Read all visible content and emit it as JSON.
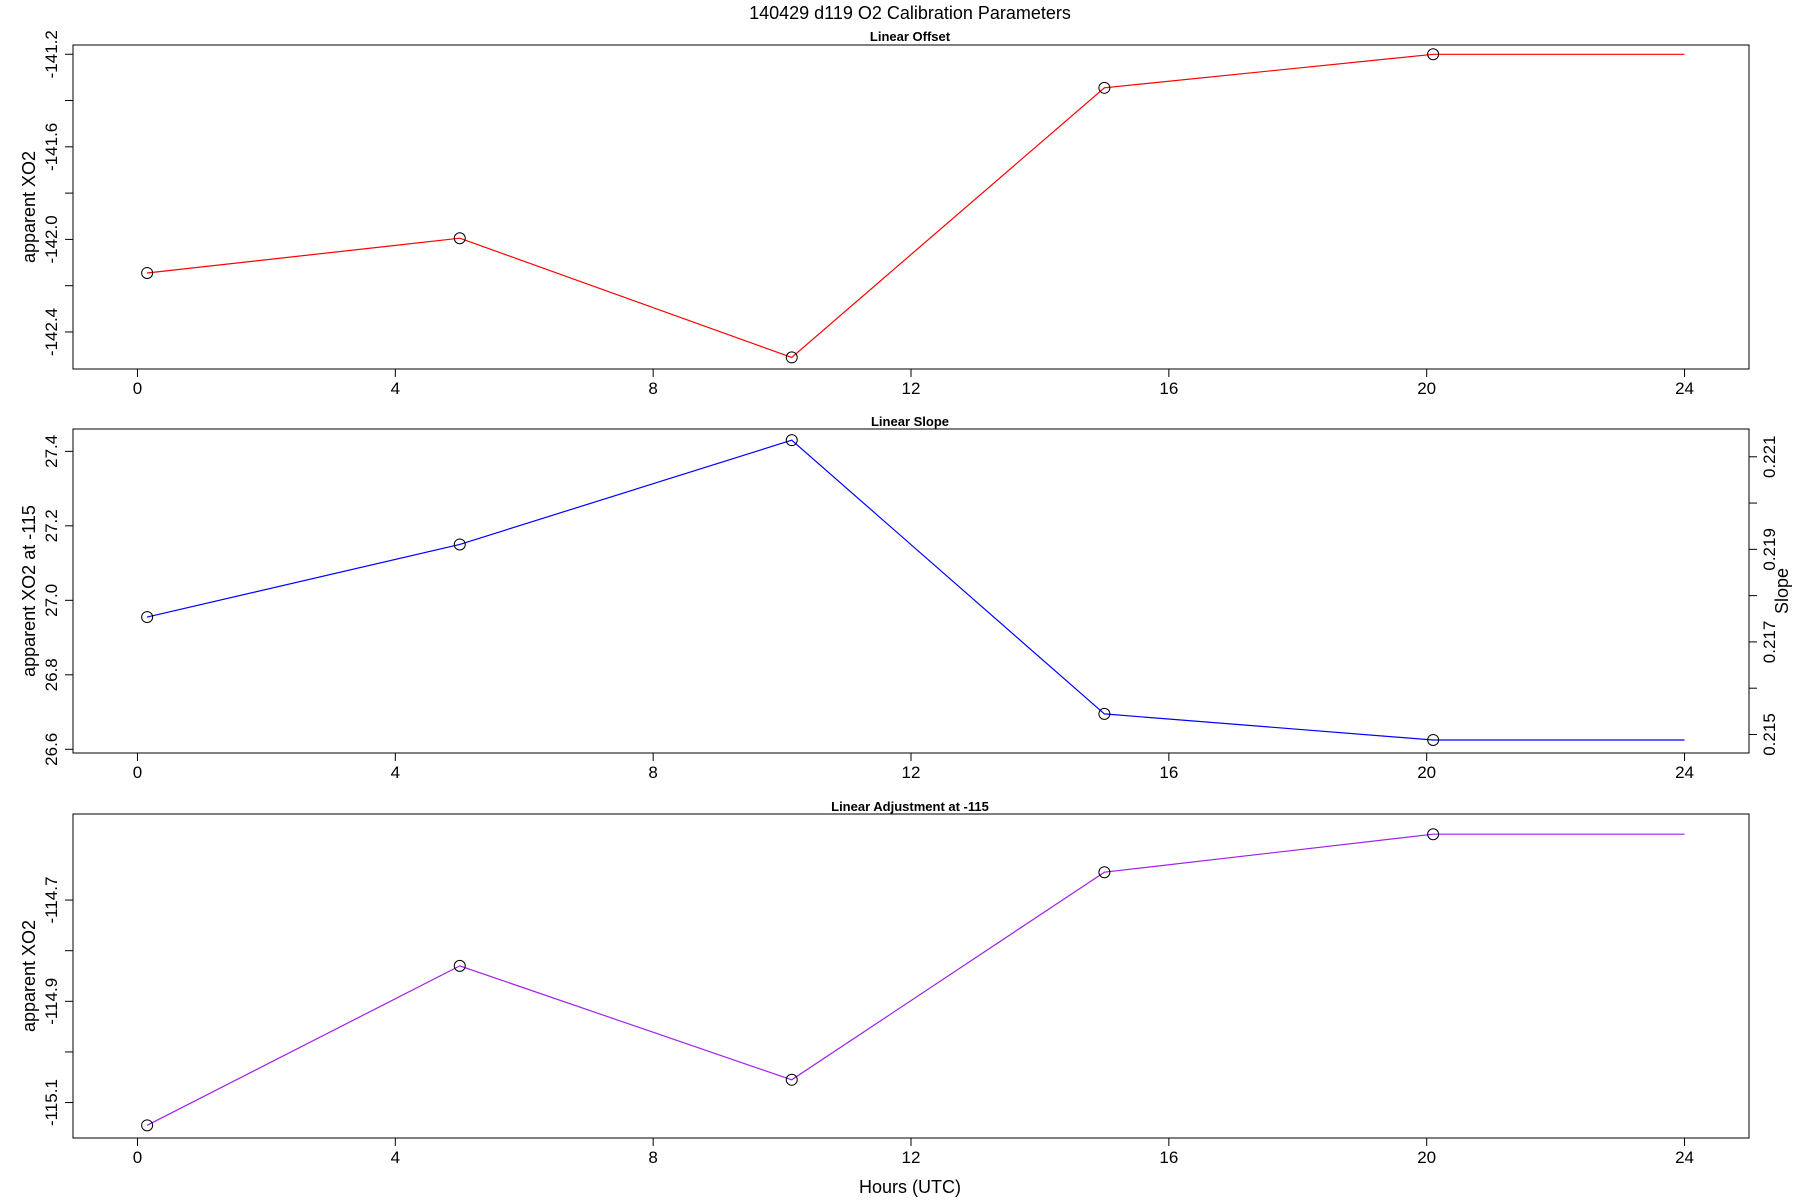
{
  "figure": {
    "title": "140429   d119   O2 Calibration Parameters",
    "xlabel": "Hours (UTC)"
  },
  "chart_data": [
    {
      "type": "line",
      "title": "Linear Offset",
      "ylabel": "apparent XO2",
      "xlim": [
        -1.0,
        25.0
      ],
      "ylim": [
        -142.56,
        -141.16
      ],
      "x_ticks": [
        0,
        4,
        8,
        12,
        16,
        20,
        24
      ],
      "y_ticks": [
        -142.4,
        -142.2,
        -142.0,
        -141.8,
        -141.6,
        -141.4,
        -141.2
      ],
      "y_tick_labels": [
        "-142.4",
        "",
        "-142.0",
        "",
        "-141.6",
        "",
        "-141.2"
      ],
      "line_color": "#ff0000",
      "grid": false,
      "x": [
        0.15,
        5.0,
        10.15,
        15.0,
        20.1,
        24.0
      ],
      "values": [
        -142.145,
        -141.995,
        -142.51,
        -141.345,
        -141.2,
        -141.2
      ],
      "markers": [
        true,
        true,
        true,
        true,
        true,
        false
      ]
    },
    {
      "type": "line",
      "title": "Linear Slope",
      "ylabel": "apparent XO2 at -115",
      "y2label": "Slope",
      "xlim": [
        -1.0,
        25.0
      ],
      "ylim": [
        26.59,
        27.46
      ],
      "x_ticks": [
        0,
        4,
        8,
        12,
        16,
        20,
        24
      ],
      "y_ticks": [
        26.6,
        26.8,
        27.0,
        27.2,
        27.4
      ],
      "y_tick_labels": [
        "26.6",
        "26.8",
        "27.0",
        "27.2",
        "27.4"
      ],
      "y2lim": [
        0.2146,
        0.2216
      ],
      "y2_ticks": [
        0.215,
        0.216,
        0.217,
        0.218,
        0.219,
        0.22,
        0.221
      ],
      "y2_tick_labels": [
        "0.215",
        "",
        "0.217",
        "",
        "0.219",
        "",
        "0.221"
      ],
      "line_color": "#0000ff",
      "grid": false,
      "x": [
        0.15,
        5.0,
        10.15,
        15.0,
        20.1,
        24.0
      ],
      "values": [
        26.955,
        27.15,
        27.43,
        26.695,
        26.625,
        26.625
      ],
      "markers": [
        true,
        true,
        true,
        true,
        true,
        false
      ]
    },
    {
      "type": "line",
      "title": "Linear Adjustment at -115",
      "ylabel": "apparent XO2",
      "xlim": [
        -1.0,
        25.0
      ],
      "ylim": [
        -115.17,
        -114.53
      ],
      "x_ticks": [
        0,
        4,
        8,
        12,
        16,
        20,
        24
      ],
      "y_ticks": [
        -115.1,
        -115.0,
        -114.9,
        -114.8,
        -114.7
      ],
      "y_tick_labels": [
        "-115.1",
        "",
        "-114.9",
        "",
        "-114.7"
      ],
      "line_color": "#a020f0",
      "grid": false,
      "x": [
        0.15,
        5.0,
        10.15,
        15.0,
        20.1,
        24.0
      ],
      "values": [
        -115.145,
        -114.83,
        -115.055,
        -114.645,
        -114.57,
        -114.57
      ],
      "markers": [
        true,
        true,
        true,
        true,
        true,
        false
      ]
    }
  ]
}
